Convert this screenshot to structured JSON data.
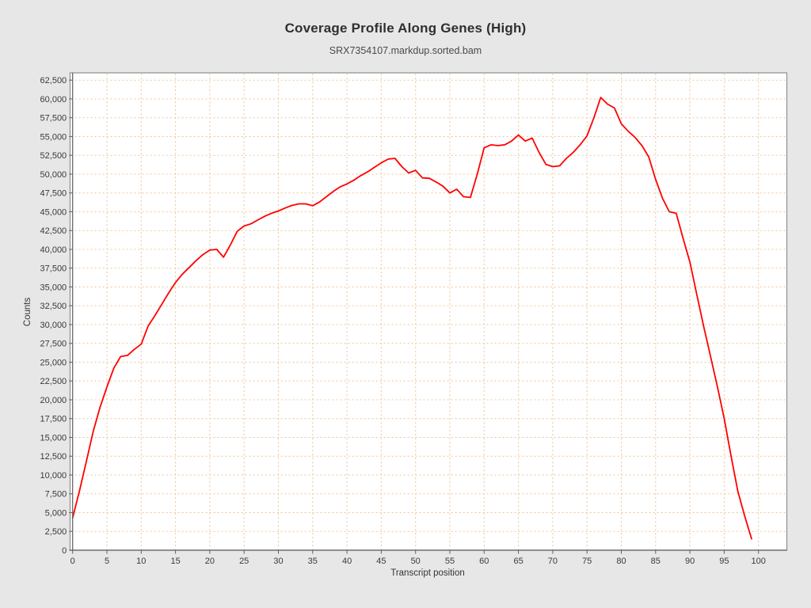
{
  "header": {
    "title": "Coverage Profile Along Genes (High)",
    "subtitle": "SRX7354107.markdup.sorted.bam"
  },
  "chart_data": {
    "type": "line",
    "title": "Coverage Profile Along Genes (High)",
    "subtitle": "SRX7354107.markdup.sorted.bam",
    "xlabel": "Transcript position",
    "ylabel": "Counts",
    "xlim": [
      0,
      100
    ],
    "ylim": [
      0,
      62500
    ],
    "x_ticks": [
      0,
      5,
      10,
      15,
      20,
      25,
      30,
      35,
      40,
      45,
      50,
      55,
      60,
      65,
      70,
      75,
      80,
      85,
      90,
      95,
      100
    ],
    "y_ticks": [
      0,
      2500,
      5000,
      7500,
      10000,
      12500,
      15000,
      17500,
      20000,
      22500,
      25000,
      27500,
      30000,
      32500,
      35000,
      37500,
      40000,
      42500,
      45000,
      47500,
      50000,
      52500,
      55000,
      57500,
      60000,
      62500
    ],
    "grid": {
      "show": true,
      "style": "dashed",
      "color": "#f0c9a0"
    },
    "legend": "none",
    "plot_background": "#ffffff",
    "page_background": "#e7e7e7",
    "border_color": "#8f8f8f",
    "axis_color": "#5f5f5f",
    "series": [
      {
        "name": "SRX7354107.markdup.sorted.bam",
        "color": "#ff0000",
        "x_start": 0,
        "x_step": 1,
        "values": [
          4300,
          7900,
          11800,
          15800,
          19000,
          21700,
          24200,
          25750,
          25900,
          26700,
          27400,
          29800,
          31200,
          32700,
          34200,
          35600,
          36700,
          37600,
          38500,
          39300,
          39900,
          40000,
          38950,
          40600,
          42400,
          43100,
          43400,
          43900,
          44400,
          44800,
          45100,
          45500,
          45850,
          46050,
          46050,
          45800,
          46300,
          47000,
          47700,
          48300,
          48700,
          49200,
          49800,
          50300,
          50900,
          51500,
          52000,
          52100,
          51000,
          50150,
          50500,
          49500,
          49450,
          48950,
          48400,
          47500,
          48000,
          47000,
          46900,
          50000,
          53500,
          53900,
          53800,
          53900,
          54400,
          55200,
          54400,
          54800,
          52900,
          51300,
          51000,
          51100,
          52100,
          52900,
          53900,
          55100,
          57500,
          60200,
          59300,
          58800,
          56700,
          55700,
          54900,
          53800,
          52300,
          49300,
          46800,
          45000,
          44800,
          41500,
          38300,
          34000,
          29800,
          25800,
          21800,
          17500,
          12500,
          7800,
          4500,
          1500
        ]
      }
    ]
  }
}
